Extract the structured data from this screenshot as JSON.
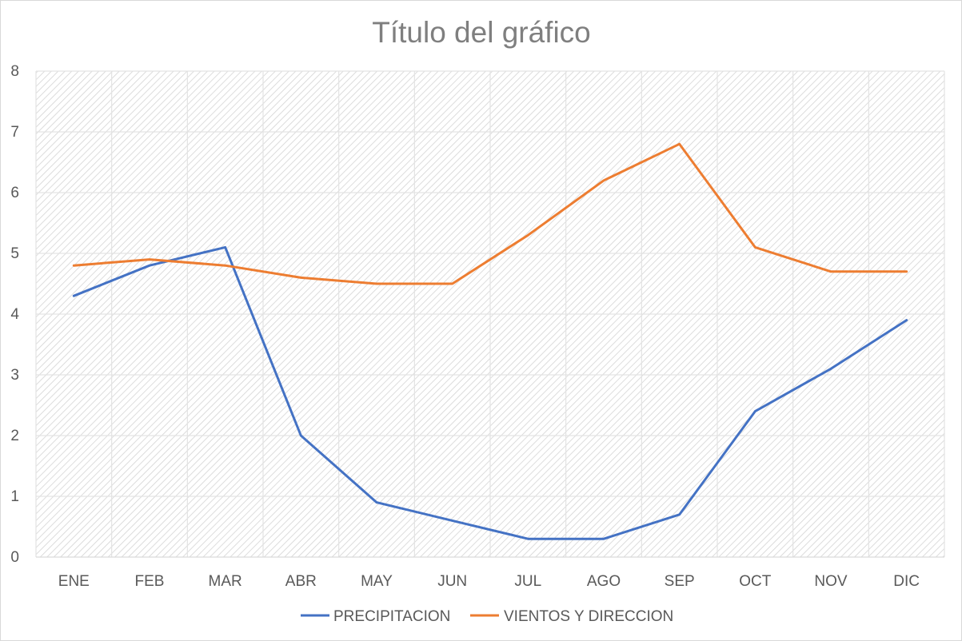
{
  "chart_data": {
    "type": "line",
    "title": "Título del gráfico",
    "xlabel": "",
    "ylabel": "",
    "ylim": [
      0,
      8
    ],
    "yticks": [
      0,
      1,
      2,
      3,
      4,
      5,
      6,
      7,
      8
    ],
    "categories": [
      "ENE",
      "FEB",
      "MAR",
      "ABR",
      "MAY",
      "JUN",
      "JUL",
      "AGO",
      "SEP",
      "OCT",
      "NOV",
      "DIC"
    ],
    "series": [
      {
        "name": "PRECIPITACION",
        "color": "#4472c4",
        "values": [
          4.3,
          4.8,
          5.1,
          2.0,
          0.9,
          0.6,
          0.3,
          0.3,
          0.7,
          2.4,
          3.1,
          3.9
        ]
      },
      {
        "name": "VIENTOS Y DIRECCION",
        "color": "#ed7d31",
        "values": [
          4.8,
          4.9,
          4.8,
          4.6,
          4.5,
          4.5,
          5.3,
          6.2,
          6.8,
          5.1,
          4.7,
          4.7
        ]
      }
    ],
    "grid": true,
    "plot_background": "diagonal-hatch",
    "legend_position": "bottom"
  }
}
